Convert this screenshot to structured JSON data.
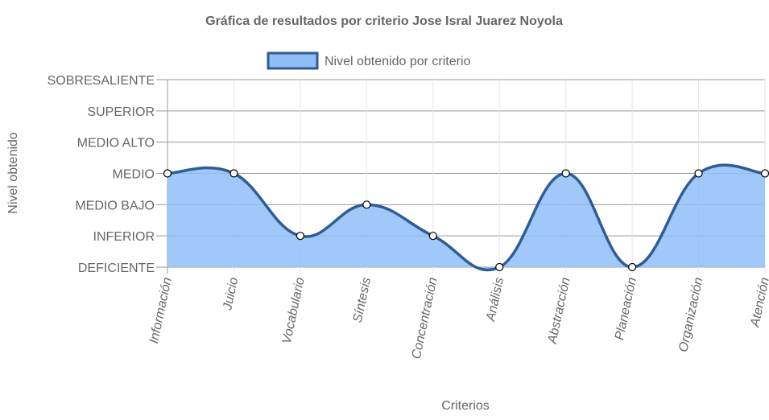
{
  "chart_data": {
    "type": "area",
    "title": "Gráfica de resultados por criterio Jose Isral Juarez Noyola",
    "xlabel": "Criterios",
    "ylabel": "Nivel obtenido",
    "categories": [
      "Información",
      "Juicio",
      "Vocabulario",
      "Síntesis",
      "Concentración",
      "Análisis",
      "Abstracción",
      "Planeación",
      "Organización",
      "Atención"
    ],
    "y_levels": [
      "DEFICIENTE",
      "INFERIOR",
      "MEDIO BAJO",
      "MEDIO",
      "MEDIO ALTO",
      "SUPERIOR",
      "SOBRESALIENTE"
    ],
    "ylim": [
      0,
      6
    ],
    "series": [
      {
        "name": "Nivel obtenido por criterio",
        "values": [
          3,
          3,
          1,
          2,
          1,
          0,
          3,
          0,
          3,
          3
        ],
        "value_labels": [
          "MEDIO",
          "MEDIO",
          "INFERIOR",
          "MEDIO BAJO",
          "INFERIOR",
          "DEFICIENTE",
          "MEDIO",
          "DEFICIENTE",
          "MEDIO",
          "MEDIO"
        ],
        "fill_color": "#8fbef7",
        "line_color": "#2f5c96"
      }
    ],
    "legend_position": "top",
    "grid": true
  }
}
